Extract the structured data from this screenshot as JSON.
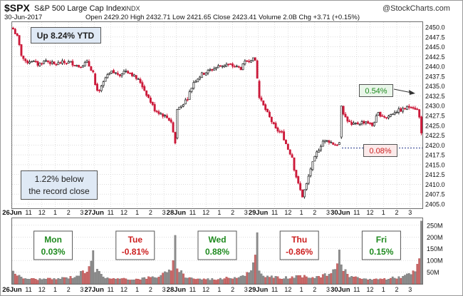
{
  "header": {
    "symbol": "$SPX",
    "name": "S&P 500 Large Cap Index",
    "exchange": "INDX",
    "watermark": "@StockCharts.com",
    "date": "30-Jun-2017",
    "quote": "Open 2429.20  High 2432.71  Low 2421.65  Close 2423.41  Volume 2.0B  Chg +3.71 (+0.15%)"
  },
  "callouts": {
    "ytd": "Up 8.24% YTD",
    "record_line1": "1.22% below",
    "record_line2": "the record close",
    "up_pct": "0.54%",
    "down_pct": "0.08%"
  },
  "days": [
    {
      "day": "Mon",
      "chg": "0.03%",
      "color": "#1f8a1f"
    },
    {
      "day": "Tue",
      "chg": "-0.81%",
      "color": "#cc1f1f"
    },
    {
      "day": "Wed",
      "chg": "0.88%",
      "color": "#1f8a1f"
    },
    {
      "day": "Thu",
      "chg": "-0.86%",
      "color": "#cc1f1f"
    },
    {
      "day": "Fri",
      "chg": "0.15%",
      "color": "#1f8a1f"
    }
  ],
  "colors": {
    "up": "#222222",
    "down": "#cc1b3b",
    "vol_up": "#8c8c8c",
    "vol_down": "#c96a6a",
    "grid": "#c8c8c8",
    "dotline": "#2a3a8c"
  },
  "chart_data": {
    "type": "candlestick",
    "price_axis": {
      "min": 2405,
      "max": 2450,
      "ticks": [
        "2450.0",
        "2447.5",
        "2445.0",
        "2442.5",
        "2440.0",
        "2437.5",
        "2435.0",
        "2432.5",
        "2430.0",
        "2427.5",
        "2425.0",
        "2422.5",
        "2420.0",
        "2417.5",
        "2415.0",
        "2412.5",
        "2410.0",
        "2407.5",
        "2405.0"
      ]
    },
    "volume_axis": {
      "max": 280,
      "ticks": [
        "250M",
        "200M",
        "150M",
        "100M",
        "50M"
      ]
    },
    "x_labels": [
      "26Jun",
      "11",
      "12",
      "1",
      "2",
      "3",
      "27Jun",
      "11",
      "12",
      "1",
      "2",
      "3",
      "28Jun",
      "11",
      "12",
      "1",
      "2",
      "3",
      "29Jun",
      "11",
      "12",
      "1",
      "2",
      "3",
      "30Jun",
      "11",
      "12",
      "1",
      "2",
      "3"
    ],
    "days": 5,
    "bars_per_day": 40,
    "close_path": [
      [
        0,
        2449.5
      ],
      [
        2,
        2447.5
      ],
      [
        4,
        2443
      ],
      [
        6,
        2441
      ],
      [
        9,
        2441.5
      ],
      [
        12,
        2440.5
      ],
      [
        16,
        2441.5
      ],
      [
        20,
        2440.5
      ],
      [
        24,
        2441
      ],
      [
        28,
        2441
      ],
      [
        32,
        2440
      ],
      [
        36,
        2441
      ],
      [
        39,
        2438.5
      ],
      [
        40,
        2435
      ],
      [
        42,
        2433.5
      ],
      [
        45,
        2437
      ],
      [
        48,
        2438.5
      ],
      [
        52,
        2438
      ],
      [
        55,
        2439
      ],
      [
        58,
        2438
      ],
      [
        62,
        2436
      ],
      [
        64,
        2434
      ],
      [
        66,
        2432
      ],
      [
        69,
        2429
      ],
      [
        72,
        2428
      ],
      [
        75,
        2427
      ],
      [
        77,
        2426
      ],
      [
        79,
        2420.5
      ],
      [
        80,
        2429
      ],
      [
        82,
        2430
      ],
      [
        85,
        2432
      ],
      [
        88,
        2436
      ],
      [
        92,
        2438
      ],
      [
        96,
        2439
      ],
      [
        100,
        2440
      ],
      [
        104,
        2440.5
      ],
      [
        108,
        2440
      ],
      [
        111,
        2439.5
      ],
      [
        113,
        2441
      ],
      [
        116,
        2442
      ],
      [
        118,
        2441.5
      ],
      [
        119,
        2437
      ],
      [
        120,
        2432
      ],
      [
        122,
        2430
      ],
      [
        124,
        2428
      ],
      [
        126,
        2426
      ],
      [
        128,
        2424
      ],
      [
        131,
        2423
      ],
      [
        134,
        2419
      ],
      [
        136,
        2417
      ],
      [
        137,
        2414
      ],
      [
        139,
        2410
      ],
      [
        141,
        2407
      ],
      [
        143,
        2410
      ],
      [
        145,
        2414
      ],
      [
        148,
        2418
      ],
      [
        151,
        2421
      ],
      [
        154,
        2421
      ],
      [
        157,
        2420
      ],
      [
        159,
        2420.5
      ],
      [
        160,
        2429.5
      ],
      [
        162,
        2427
      ],
      [
        165,
        2425
      ],
      [
        168,
        2425.5
      ],
      [
        172,
        2426
      ],
      [
        175,
        2425
      ],
      [
        178,
        2428
      ],
      [
        182,
        2427
      ],
      [
        186,
        2428.5
      ],
      [
        190,
        2429
      ],
      [
        194,
        2430
      ],
      [
        197,
        2429
      ],
      [
        198,
        2427
      ],
      [
        199,
        2423.4
      ]
    ],
    "volume_profile": [
      [
        0,
        55
      ],
      [
        4,
        25
      ],
      [
        10,
        20
      ],
      [
        20,
        20
      ],
      [
        30,
        30
      ],
      [
        36,
        60
      ],
      [
        38,
        110
      ],
      [
        39,
        150
      ],
      [
        40,
        60
      ],
      [
        44,
        30
      ],
      [
        50,
        20
      ],
      [
        60,
        20
      ],
      [
        70,
        30
      ],
      [
        76,
        50
      ],
      [
        78,
        80
      ],
      [
        79,
        180
      ],
      [
        80,
        70
      ],
      [
        84,
        30
      ],
      [
        90,
        20
      ],
      [
        100,
        20
      ],
      [
        110,
        30
      ],
      [
        116,
        50
      ],
      [
        118,
        110
      ],
      [
        119,
        200
      ],
      [
        120,
        50
      ],
      [
        124,
        30
      ],
      [
        130,
        25
      ],
      [
        140,
        30
      ],
      [
        150,
        30
      ],
      [
        156,
        50
      ],
      [
        158,
        90
      ],
      [
        159,
        170
      ],
      [
        160,
        70
      ],
      [
        164,
        30
      ],
      [
        170,
        20
      ],
      [
        180,
        20
      ],
      [
        190,
        30
      ],
      [
        196,
        50
      ],
      [
        198,
        100
      ],
      [
        199,
        260
      ]
    ],
    "close_up_pct": "0.54%",
    "close_down_pct": "0.08%"
  }
}
